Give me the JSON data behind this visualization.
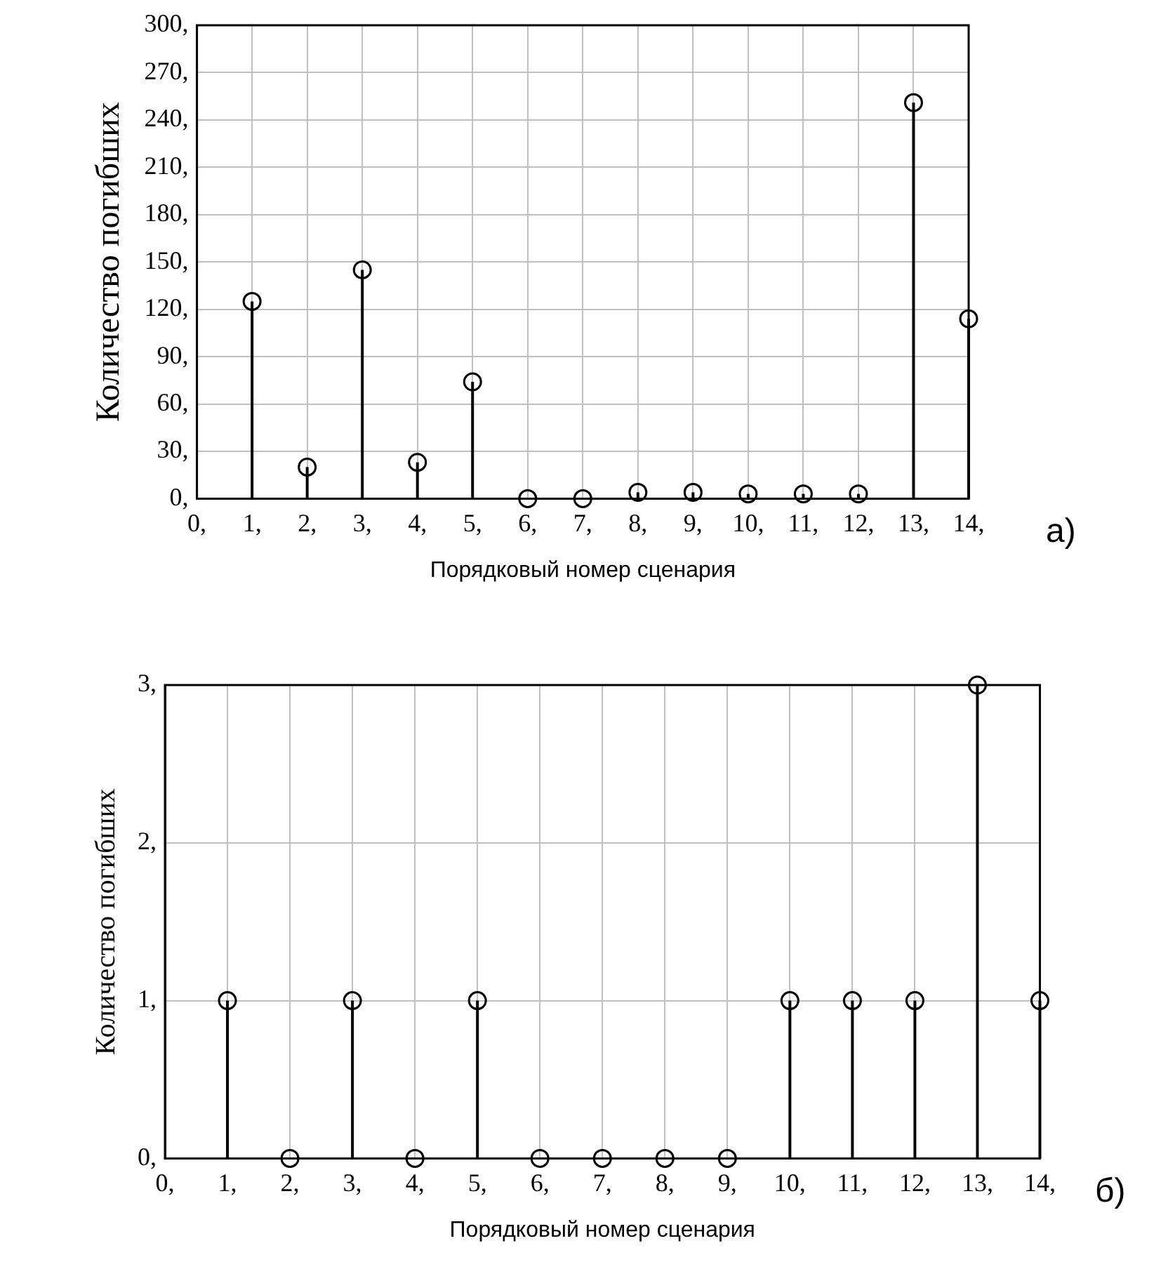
{
  "chart_data": [
    {
      "type": "lollipop",
      "ylabel": "Количество погибших",
      "xlabel": "Порядковый номер сценария",
      "annotations": [
        "а)"
      ],
      "x": [
        1,
        2,
        3,
        4,
        5,
        6,
        7,
        8,
        9,
        10,
        11,
        12,
        13,
        14
      ],
      "series": [
        {
          "color": "#000000",
          "values": [
            125,
            20,
            145,
            23,
            74,
            0,
            0,
            4,
            4,
            3,
            3,
            3,
            251,
            114
          ]
        }
      ],
      "xlim": [
        0,
        14
      ],
      "xticks": [
        {
          "value": 0,
          "label": "0,"
        },
        {
          "value": 1,
          "label": "1,"
        },
        {
          "value": 2,
          "label": "2,"
        },
        {
          "value": 3,
          "label": "3,"
        },
        {
          "value": 4,
          "label": "4,"
        },
        {
          "value": 5,
          "label": "5,"
        },
        {
          "value": 6,
          "label": "6,"
        },
        {
          "value": 7,
          "label": "7,"
        },
        {
          "value": 8,
          "label": "8,"
        },
        {
          "value": 9,
          "label": "9,"
        },
        {
          "value": 10,
          "label": "10,"
        },
        {
          "value": 11,
          "label": "11,"
        },
        {
          "value": 12,
          "label": "12,"
        },
        {
          "value": 13,
          "label": "13,"
        },
        {
          "value": 14,
          "label": "14,"
        }
      ],
      "ylim": [
        0,
        300
      ],
      "yticks": [
        {
          "value": 0,
          "label": "0,"
        },
        {
          "value": 30,
          "label": "30,"
        },
        {
          "value": 60,
          "label": "60,"
        },
        {
          "value": 90,
          "label": "90,"
        },
        {
          "value": 120,
          "label": "120,"
        },
        {
          "value": 150,
          "label": "150,"
        },
        {
          "value": 180,
          "label": "180,"
        },
        {
          "value": 210,
          "label": "210,"
        },
        {
          "value": 240,
          "label": "240,"
        },
        {
          "value": 270,
          "label": "270,"
        },
        {
          "value": 300,
          "label": "300,"
        }
      ],
      "grid": true,
      "legend": false,
      "marker": "circle"
    },
    {
      "type": "lollipop",
      "ylabel": "Количество погибших",
      "xlabel": "Порядковый номер сценария",
      "annotations": [
        "б)"
      ],
      "x": [
        1,
        2,
        3,
        4,
        5,
        6,
        7,
        8,
        9,
        10,
        11,
        12,
        13,
        14
      ],
      "series": [
        {
          "color": "#000000",
          "values": [
            1,
            0,
            1,
            0,
            1,
            0,
            0,
            0,
            0,
            1,
            1,
            1,
            3,
            1
          ]
        }
      ],
      "xlim": [
        0,
        14
      ],
      "xticks": [
        {
          "value": 0,
          "label": "0,"
        },
        {
          "value": 1,
          "label": "1,"
        },
        {
          "value": 2,
          "label": "2,"
        },
        {
          "value": 3,
          "label": "3,"
        },
        {
          "value": 4,
          "label": "4,"
        },
        {
          "value": 5,
          "label": "5,"
        },
        {
          "value": 6,
          "label": "6,"
        },
        {
          "value": 7,
          "label": "7,"
        },
        {
          "value": 8,
          "label": "8,"
        },
        {
          "value": 9,
          "label": "9,"
        },
        {
          "value": 10,
          "label": "10,"
        },
        {
          "value": 11,
          "label": "11,"
        },
        {
          "value": 12,
          "label": "12,"
        },
        {
          "value": 13,
          "label": "13,"
        },
        {
          "value": 14,
          "label": "14,"
        }
      ],
      "ylim": [
        0,
        3
      ],
      "yticks": [
        {
          "value": 0,
          "label": "0,"
        },
        {
          "value": 1,
          "label": "1,"
        },
        {
          "value": 2,
          "label": "2,"
        },
        {
          "value": 3,
          "label": "3,"
        }
      ],
      "grid": true,
      "legend": false,
      "marker": "circle"
    }
  ]
}
